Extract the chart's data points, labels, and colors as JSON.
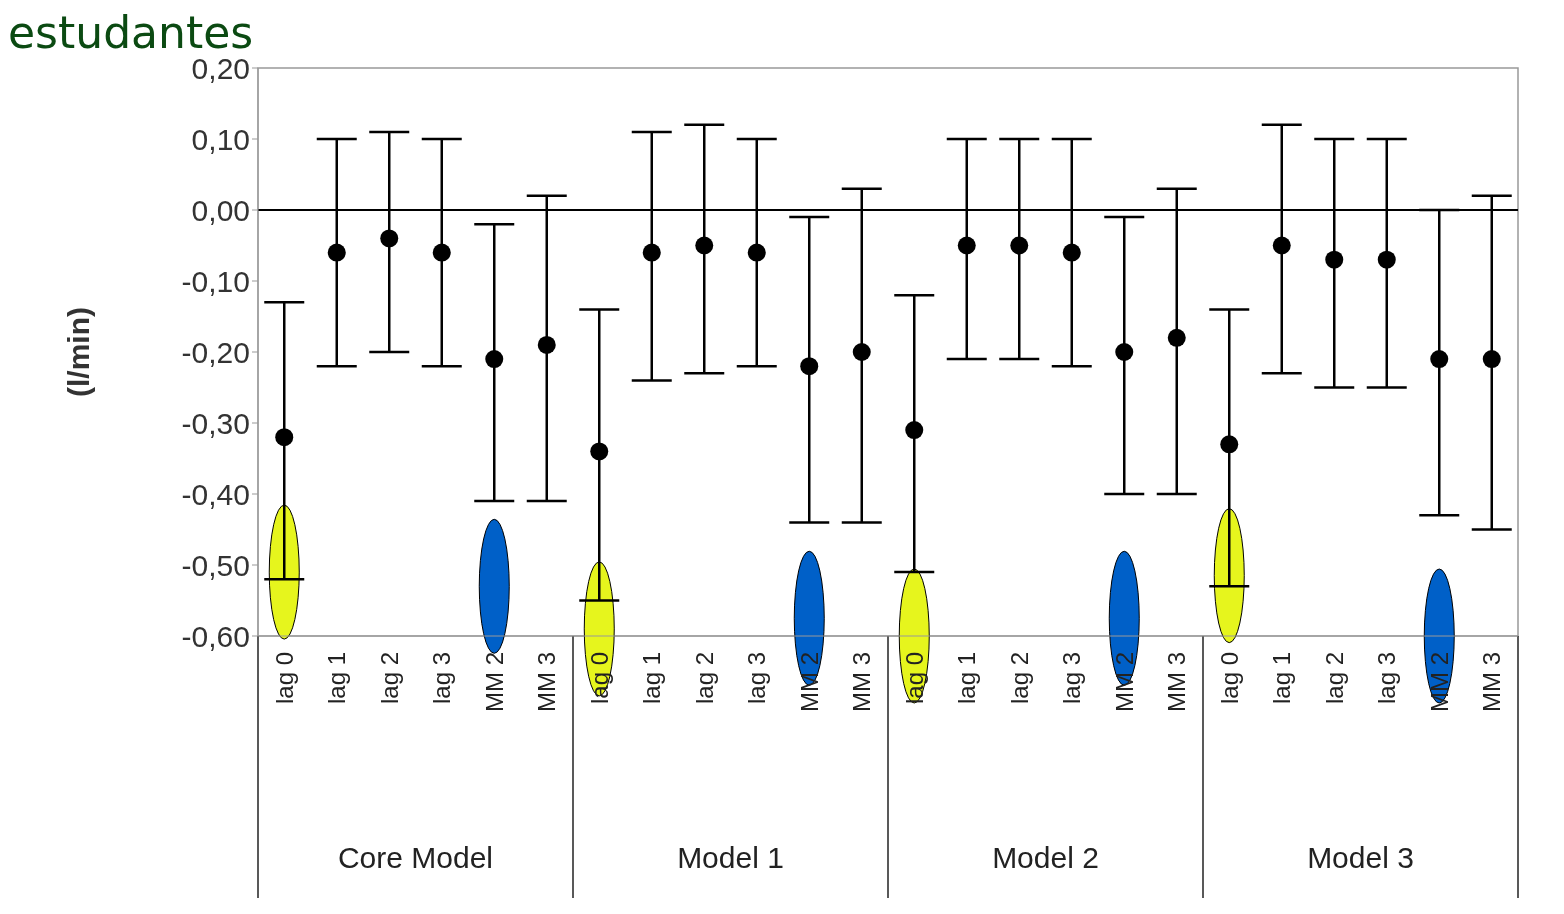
{
  "chart_data": {
    "type": "scatter",
    "title": "estudantes",
    "ylabel": "(l/min)",
    "categories": [
      "lag 0",
      "lag 1",
      "lag 2",
      "lag 3",
      "MM 2",
      "MM 3",
      "lag 0",
      "lag 1",
      "lag 2",
      "lag 3",
      "MM 2",
      "MM 3",
      "lag 0",
      "lag 1",
      "lag 2",
      "lag 3",
      "MM 2",
      "MM 3",
      "lag 0",
      "lag 1",
      "lag 2",
      "lag 3",
      "MM 2",
      "MM 3"
    ],
    "values": [
      -0.32,
      -0.06,
      -0.04,
      -0.06,
      -0.21,
      -0.19,
      -0.34,
      -0.06,
      -0.05,
      -0.06,
      -0.22,
      -0.2,
      -0.31,
      -0.05,
      -0.05,
      -0.06,
      -0.2,
      -0.18,
      -0.33,
      -0.05,
      -0.07,
      -0.07,
      -0.21,
      -0.21
    ],
    "errors": [
      [
        -0.52,
        -0.13
      ],
      [
        -0.22,
        0.1
      ],
      [
        -0.2,
        0.11
      ],
      [
        -0.22,
        0.1
      ],
      [
        -0.41,
        -0.02
      ],
      [
        -0.41,
        0.02
      ],
      [
        -0.55,
        -0.14
      ],
      [
        -0.24,
        0.11
      ],
      [
        -0.23,
        0.12
      ],
      [
        -0.22,
        0.1
      ],
      [
        -0.44,
        -0.01
      ],
      [
        -0.44,
        0.03
      ],
      [
        -0.51,
        -0.12
      ],
      [
        -0.21,
        0.1
      ],
      [
        -0.21,
        0.1
      ],
      [
        -0.22,
        0.1
      ],
      [
        -0.4,
        -0.01
      ],
      [
        -0.4,
        0.03
      ],
      [
        -0.53,
        -0.14
      ],
      [
        -0.23,
        0.12
      ],
      [
        -0.25,
        0.1
      ],
      [
        -0.25,
        0.1
      ],
      [
        -0.43,
        0.0
      ],
      [
        -0.45,
        0.02
      ]
    ],
    "color": "#000000",
    "marker": "circle",
    "ylim": [
      -0.6,
      0.2
    ],
    "yticks": [
      {
        "value": 0.2,
        "label": "0,20"
      },
      {
        "value": 0.1,
        "label": "0,10"
      },
      {
        "value": 0,
        "label": "0,00"
      },
      {
        "value": -0.1,
        "label": "-0,10"
      },
      {
        "value": -0.2,
        "label": "-0,20"
      },
      {
        "value": -0.3,
        "label": "-0,30"
      },
      {
        "value": -0.4,
        "label": "-0,40"
      },
      {
        "value": -0.5,
        "label": "-0,50"
      },
      {
        "value": -0.6,
        "label": "-0,60"
      }
    ],
    "ref_lines": [
      {
        "axis": "y",
        "value": 0,
        "color": "#000000"
      }
    ],
    "annotations": [
      "Core Model",
      "Model 1",
      "Model 2",
      "Model 3"
    ],
    "grid": false
  }
}
